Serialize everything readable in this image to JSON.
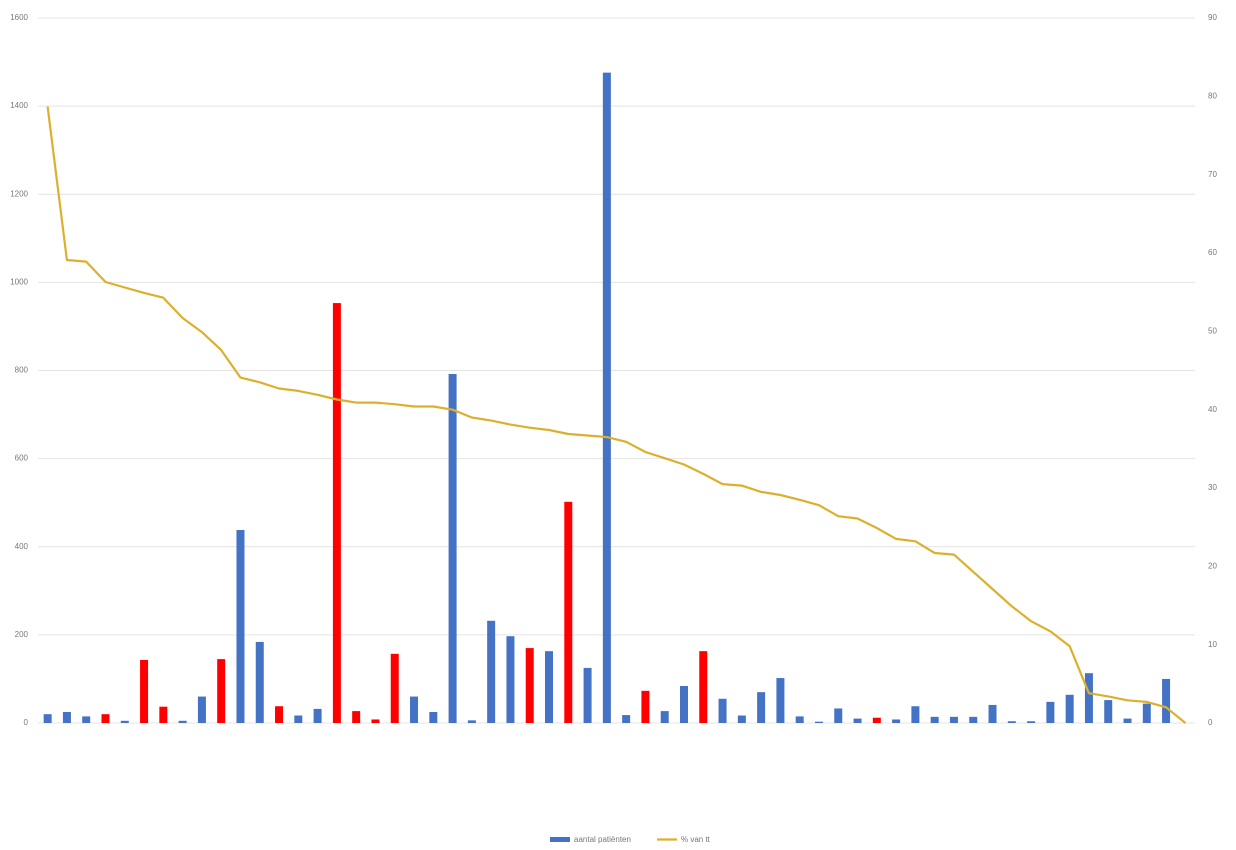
{
  "chart_data": {
    "type": "bar_line",
    "categories": [
      null,
      null,
      null,
      null,
      null,
      null,
      null,
      null,
      null,
      null,
      null,
      null,
      null,
      null,
      null,
      null,
      null,
      null,
      null,
      null,
      null,
      null,
      null,
      null,
      null,
      null,
      null,
      null,
      null,
      null,
      null,
      null,
      null,
      null,
      null,
      null,
      null,
      null,
      null,
      null,
      null,
      null,
      null,
      null,
      null,
      null,
      null,
      null,
      null,
      null,
      null,
      null,
      null,
      null,
      null,
      null,
      null,
      null,
      null,
      null
    ],
    "series": [
      {
        "name": "aantal patiënten",
        "type": "bar",
        "color": "#4472c4",
        "colors": [
          "#4472c4",
          "#4472c4",
          "#4472c4",
          "#ff0000",
          "#4472c4",
          "#ff0000",
          "#ff0000",
          "#4472c4",
          "#4472c4",
          "#ff0000",
          "#4472c4",
          "#4472c4",
          "#ff0000",
          "#4472c4",
          "#4472c4",
          "#ff0000",
          "#ff0000",
          "#ff0000",
          "#ff0000",
          "#4472c4",
          "#4472c4",
          "#4472c4",
          "#4472c4",
          "#4472c4",
          "#4472c4",
          "#ff0000",
          "#4472c4",
          "#ff0000",
          "#4472c4",
          "#4472c4",
          "#4472c4",
          "#ff0000",
          "#4472c4",
          "#4472c4",
          "#ff0000",
          "#4472c4",
          "#4472c4",
          "#4472c4",
          "#4472c4",
          "#4472c4",
          "#4472c4",
          "#4472c4",
          "#4472c4",
          "#ff0000",
          "#4472c4",
          "#4472c4",
          "#4472c4",
          "#4472c4",
          "#4472c4",
          "#4472c4",
          "#4472c4",
          "#4472c4",
          "#4472c4",
          "#4472c4",
          "#4472c4",
          "#4472c4",
          "#4472c4",
          "#4472c4",
          "#4472c4",
          "#4472c4"
        ],
        "values": [
          20,
          25,
          15,
          20,
          5,
          143,
          37,
          5,
          60,
          145,
          438,
          184,
          38,
          17,
          32,
          953,
          27,
          8,
          157,
          60,
          25,
          792,
          6,
          232,
          197,
          170,
          163,
          502,
          125,
          1476,
          18,
          73,
          27,
          84,
          163,
          55,
          17,
          70,
          102,
          15,
          3,
          33,
          10,
          12,
          8,
          38,
          14,
          14,
          14,
          41,
          4,
          4,
          48,
          64,
          113,
          52,
          10,
          44,
          100,
          0
        ]
      },
      {
        "name": "% van tt",
        "type": "line",
        "axis": "y2",
        "color": "#dcb02c",
        "values": [
          78.7,
          59.1,
          58.9,
          56.3,
          55.6,
          54.9,
          54.3,
          51.7,
          49.9,
          47.6,
          44.1,
          43.5,
          42.7,
          42.4,
          41.9,
          41.3,
          40.9,
          40.9,
          40.7,
          40.4,
          40.4,
          40.0,
          39.0,
          38.6,
          38.1,
          37.7,
          37.4,
          36.9,
          36.7,
          36.5,
          35.9,
          34.6,
          33.8,
          33.0,
          31.8,
          30.5,
          30.3,
          29.5,
          29.1,
          28.5,
          27.8,
          26.4,
          26.1,
          24.9,
          23.5,
          23.2,
          21.7,
          21.5,
          19.3,
          17.1,
          14.9,
          13.0,
          11.7,
          9.8,
          3.8,
          3.4,
          2.9,
          2.7,
          2.0,
          0
        ]
      }
    ],
    "ylim": [
      0,
      1600
    ],
    "yticks": [
      0,
      200,
      400,
      600,
      800,
      1000,
      1200,
      1400,
      1600
    ],
    "y2lim": [
      0,
      90
    ],
    "y2ticks": [
      0,
      10,
      20,
      30,
      40,
      50,
      60,
      70,
      80,
      90
    ],
    "grid": true,
    "legend": "bottom"
  }
}
